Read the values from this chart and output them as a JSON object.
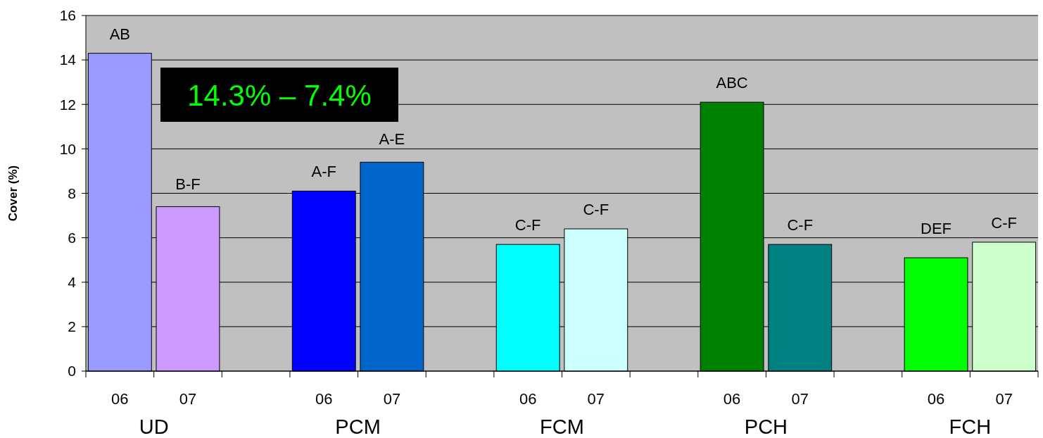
{
  "chart_data": {
    "type": "bar",
    "ylabel": "Cover (%)",
    "categories": [
      "06",
      "07",
      null,
      "06",
      "07",
      null,
      "06",
      "07",
      null,
      "06",
      "07",
      null,
      "06",
      "07"
    ],
    "values": [
      14.3,
      7.4,
      null,
      8.1,
      9.4,
      null,
      5.7,
      6.4,
      null,
      12.1,
      5.7,
      null,
      5.1,
      5.8
    ],
    "colors": [
      "#9999ff",
      "#cc99ff",
      null,
      "#0000ff",
      "#0066cc",
      null,
      "#00ffff",
      "#ccffff",
      null,
      "#008000",
      "#008080",
      null,
      "#00ff00",
      "#ccffcc"
    ],
    "value_labels": [
      "AB",
      "B-F",
      null,
      "A-F",
      "A-E",
      null,
      "C-F",
      "C-F",
      null,
      "ABC",
      "C-F",
      null,
      "DEF",
      "C-F"
    ],
    "ylim": [
      0,
      16
    ],
    "yticks": [
      0,
      2,
      4,
      6,
      8,
      10,
      12,
      14,
      16
    ],
    "grid": "y",
    "annotations": [
      "UD",
      "PCM",
      "FCM",
      "PCH",
      "FCH",
      "14.3% – 7.4%"
    ]
  }
}
